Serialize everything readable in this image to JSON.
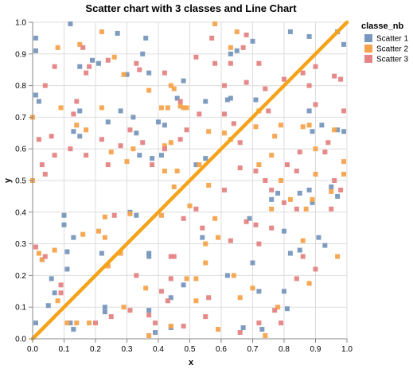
{
  "chart_data": {
    "type": "scatter",
    "title": "Scatter chart with 3 classes and Line Chart",
    "xlabel": "x",
    "ylabel": "y",
    "xlim": [
      0,
      1
    ],
    "ylim": [
      0,
      1
    ],
    "xticks": [
      "0.0",
      "0.1",
      "0.2",
      "0.3",
      "0.4",
      "0.5",
      "0.6",
      "0.7",
      "0.8",
      "0.9",
      "1.0"
    ],
    "yticks": [
      "0.0",
      "0.1",
      "0.2",
      "0.3",
      "0.4",
      "0.5",
      "0.6",
      "0.7",
      "0.8",
      "0.9",
      "1.0"
    ],
    "grid": true,
    "legend": {
      "title": "classe_nb",
      "placement": "top-right",
      "entries": [
        "Scatter 1",
        "Scatter 2",
        "Scatter 3"
      ]
    },
    "line": {
      "color": "#f5a31a",
      "x": [
        0,
        1
      ],
      "y": [
        0,
        1
      ]
    },
    "series": [
      {
        "name": "Scatter 1",
        "color": "#7797bc",
        "points": [
          [
            0.12,
            0.995
          ],
          [
            0.27,
            0.965
          ],
          [
            0.36,
            0.95
          ],
          [
            0.35,
            0.9
          ],
          [
            0.37,
            0.84
          ],
          [
            0.19,
            0.88
          ],
          [
            0.21,
            0.87
          ],
          [
            0.15,
            0.86
          ],
          [
            0.3,
            0.835
          ],
          [
            0.48,
            0.815
          ],
          [
            0.01,
            0.95
          ],
          [
            0.01,
            0.91
          ],
          [
            0.01,
            0.77
          ],
          [
            0.02,
            0.75
          ],
          [
            0.15,
            0.72
          ],
          [
            0.13,
            0.655
          ],
          [
            0.15,
            0.64
          ],
          [
            0.24,
            0.685
          ],
          [
            0.28,
            0.72
          ],
          [
            0.32,
            0.7
          ],
          [
            0.4,
            0.685
          ],
          [
            0.46,
            0.76
          ],
          [
            0.55,
            0.75
          ],
          [
            0.62,
            0.755
          ],
          [
            0.63,
            0.76
          ],
          [
            0.71,
            0.755
          ],
          [
            0.63,
            0.9
          ],
          [
            0.65,
            0.91
          ],
          [
            0.7,
            0.94
          ],
          [
            0.82,
            0.97
          ],
          [
            0.88,
            0.955
          ],
          [
            0.99,
            0.93
          ],
          [
            0.88,
            0.72
          ],
          [
            0.89,
            0.655
          ],
          [
            0.92,
            0.675
          ],
          [
            0.97,
            0.66
          ],
          [
            0.99,
            0.655
          ],
          [
            0.42,
            0.675
          ],
          [
            0.55,
            0.57
          ],
          [
            0.52,
            0.55
          ],
          [
            0.33,
            0.65
          ],
          [
            0.38,
            0.57
          ],
          [
            0.31,
            0.4
          ],
          [
            0.33,
            0.39
          ],
          [
            0.1,
            0.36
          ],
          [
            0.1,
            0.39
          ],
          [
            0.13,
            0.32
          ],
          [
            0.03,
            0.25
          ],
          [
            0.06,
            0.19
          ],
          [
            0.11,
            0.22
          ],
          [
            0.07,
            0.145
          ],
          [
            0.22,
            0.27
          ],
          [
            0.11,
            0.275
          ],
          [
            0.12,
            0.05
          ],
          [
            0.13,
            0.03
          ],
          [
            0.23,
            0.085
          ],
          [
            0.23,
            0.1
          ],
          [
            0.01,
            0.05
          ],
          [
            0.05,
            0.105
          ],
          [
            0.34,
            0.58
          ],
          [
            0.41,
            0.58
          ],
          [
            0.37,
            0.27
          ],
          [
            0.37,
            0.26
          ],
          [
            0.48,
            0.17
          ],
          [
            0.44,
            0.13
          ],
          [
            0.54,
            0.32
          ],
          [
            0.62,
            0.2
          ],
          [
            0.69,
            0.38
          ],
          [
            0.72,
            0.15
          ],
          [
            0.8,
            0.15
          ],
          [
            0.76,
            0.44
          ],
          [
            0.78,
            0.46
          ],
          [
            0.8,
            0.34
          ],
          [
            0.85,
            0.46
          ],
          [
            0.88,
            0.47
          ],
          [
            0.89,
            0.43
          ],
          [
            0.95,
            0.48
          ],
          [
            0.97,
            0.45
          ],
          [
            0.91,
            0.32
          ],
          [
            0.93,
            0.295
          ],
          [
            0.85,
            0.28
          ],
          [
            0.82,
            0.27
          ],
          [
            0.7,
            0.24
          ],
          [
            0.67,
            0.035
          ],
          [
            0.73,
            0.03
          ],
          [
            0.81,
            0.095
          ],
          [
            0.39,
            0.02
          ],
          [
            0.44,
            0.035
          ],
          [
            0.97,
            0.97
          ],
          [
            0.37,
            0.09
          ]
        ]
      },
      {
        "name": "Scatter 2",
        "color": "#f5a34c",
        "points": [
          [
            0.22,
            0.97
          ],
          [
            0.26,
            0.89
          ],
          [
            0.29,
            0.835
          ],
          [
            0.08,
            0.92
          ],
          [
            0.15,
            0.93
          ],
          [
            0.37,
            0.785
          ],
          [
            0.44,
            0.8
          ],
          [
            0.45,
            0.79
          ],
          [
            0.47,
            0.735
          ],
          [
            0.43,
            0.73
          ],
          [
            0.49,
            0.73
          ],
          [
            0.58,
            0.995
          ],
          [
            0.65,
            0.97
          ],
          [
            0.56,
            0.655
          ],
          [
            0.61,
            0.65
          ],
          [
            0.63,
            0.63
          ],
          [
            0.41,
            0.73
          ],
          [
            0.22,
            0.73
          ],
          [
            0.09,
            0.73
          ],
          [
            0.14,
            0.675
          ],
          [
            0.17,
            0.66
          ],
          [
            0.0,
            0.7
          ],
          [
            0.32,
            0.6
          ],
          [
            0.3,
            0.56
          ],
          [
            0.42,
            0.61
          ],
          [
            0.44,
            0.62
          ],
          [
            0.53,
            0.55
          ],
          [
            0.56,
            0.485
          ],
          [
            0.71,
            0.67
          ],
          [
            0.72,
            0.72
          ],
          [
            0.79,
            0.675
          ],
          [
            0.86,
            0.67
          ],
          [
            0.88,
            0.675
          ],
          [
            0.9,
            0.6
          ],
          [
            0.96,
            0.66
          ],
          [
            0.99,
            0.56
          ],
          [
            0.87,
            0.41
          ],
          [
            0.89,
            0.44
          ],
          [
            0.95,
            0.465
          ],
          [
            0.99,
            0.52
          ],
          [
            0.72,
            0.55
          ],
          [
            0.76,
            0.58
          ],
          [
            0.79,
            0.5
          ],
          [
            0.76,
            0.41
          ],
          [
            0.82,
            0.44
          ],
          [
            0.9,
            0.52
          ],
          [
            0.46,
            0.53
          ],
          [
            0.42,
            0.53
          ],
          [
            0.16,
            0.33
          ],
          [
            0.21,
            0.34
          ],
          [
            0.23,
            0.385
          ],
          [
            0.23,
            0.32
          ],
          [
            0.28,
            0.27
          ],
          [
            0.24,
            0.23
          ],
          [
            0.31,
            0.395
          ],
          [
            0.41,
            0.39
          ],
          [
            0.55,
            0.3
          ],
          [
            0.58,
            0.38
          ],
          [
            0.59,
            0.32
          ],
          [
            0.55,
            0.24
          ],
          [
            0.52,
            0.19
          ],
          [
            0.64,
            0.2
          ],
          [
            0.66,
            0.13
          ],
          [
            0.7,
            0.16
          ],
          [
            0.86,
            0.31
          ],
          [
            0.88,
            0.175
          ],
          [
            0.97,
            0.26
          ],
          [
            0.0,
            0.5
          ],
          [
            0.02,
            0.27
          ],
          [
            0.03,
            0.25
          ],
          [
            0.07,
            0.28
          ],
          [
            0.08,
            0.12
          ],
          [
            0.11,
            0.05
          ],
          [
            0.14,
            0.05
          ],
          [
            0.18,
            0.05
          ],
          [
            0.29,
            0.1
          ],
          [
            0.36,
            0.16
          ],
          [
            0.37,
            0.01
          ],
          [
            0.44,
            0.04
          ],
          [
            0.49,
            0.19
          ],
          [
            0.52,
            0.12
          ],
          [
            0.59,
            0.03
          ],
          [
            0.74,
            0.01
          ],
          [
            0.78,
            0.1
          ],
          [
            0.45,
            0.48
          ],
          [
            0.5,
            0.42
          ],
          [
            0.25,
            0.59
          ],
          [
            0.48,
            0.73
          ],
          [
            0.63,
            0.92
          ],
          [
            0.77,
            0.64
          ]
        ]
      },
      {
        "name": "Scatter 3",
        "color": "#e58383",
        "points": [
          [
            0.18,
            0.86
          ],
          [
            0.17,
            0.84
          ],
          [
            0.24,
            0.88
          ],
          [
            0.16,
            0.92
          ],
          [
            0.33,
            0.87
          ],
          [
            0.34,
            0.85
          ],
          [
            0.42,
            0.84
          ],
          [
            0.47,
            0.75
          ],
          [
            0.52,
            0.89
          ],
          [
            0.58,
            0.87
          ],
          [
            0.57,
            0.95
          ],
          [
            0.61,
            0.8
          ],
          [
            0.68,
            0.81
          ],
          [
            0.72,
            0.87
          ],
          [
            0.74,
            0.79
          ],
          [
            0.8,
            0.82
          ],
          [
            0.86,
            0.84
          ],
          [
            0.9,
            0.86
          ],
          [
            0.96,
            0.83
          ],
          [
            0.98,
            0.82
          ],
          [
            0.88,
            0.8
          ],
          [
            0.9,
            0.74
          ],
          [
            0.99,
            0.72
          ],
          [
            0.75,
            0.72
          ],
          [
            0.63,
            0.87
          ],
          [
            0.67,
            0.92
          ],
          [
            0.68,
            0.96
          ],
          [
            0.07,
            0.86
          ],
          [
            0.04,
            0.8
          ],
          [
            0.02,
            0.63
          ],
          [
            0.06,
            0.64
          ],
          [
            0.07,
            0.58
          ],
          [
            0.13,
            0.71
          ],
          [
            0.14,
            0.75
          ],
          [
            0.12,
            0.6
          ],
          [
            0.22,
            0.63
          ],
          [
            0.24,
            0.55
          ],
          [
            0.31,
            0.66
          ],
          [
            0.35,
            0.62
          ],
          [
            0.42,
            0.6
          ],
          [
            0.47,
            0.63
          ],
          [
            0.49,
            0.66
          ],
          [
            0.53,
            0.71
          ],
          [
            0.61,
            0.71
          ],
          [
            0.64,
            0.68
          ],
          [
            0.66,
            0.62
          ],
          [
            0.66,
            0.54
          ],
          [
            0.71,
            0.53
          ],
          [
            0.74,
            0.5
          ],
          [
            0.76,
            0.47
          ],
          [
            0.84,
            0.53
          ],
          [
            0.85,
            0.59
          ],
          [
            0.93,
            0.59
          ],
          [
            0.94,
            0.62
          ],
          [
            0.95,
            0.41
          ],
          [
            0.98,
            0.47
          ],
          [
            0.96,
            0.5
          ],
          [
            0.84,
            0.41
          ],
          [
            0.8,
            0.43
          ],
          [
            0.81,
            0.55
          ],
          [
            0.17,
            0.58
          ],
          [
            0.03,
            0.55
          ],
          [
            0.04,
            0.52
          ],
          [
            0.28,
            0.61
          ],
          [
            0.38,
            0.55
          ],
          [
            0.48,
            0.38
          ],
          [
            0.52,
            0.41
          ],
          [
            0.61,
            0.47
          ],
          [
            0.54,
            0.35
          ],
          [
            0.63,
            0.31
          ],
          [
            0.68,
            0.37
          ],
          [
            0.71,
            0.36
          ],
          [
            0.76,
            0.35
          ],
          [
            0.72,
            0.3
          ],
          [
            0.86,
            0.26
          ],
          [
            0.84,
            0.19
          ],
          [
            0.77,
            0.09
          ],
          [
            0.72,
            0.05
          ],
          [
            0.56,
            0.13
          ],
          [
            0.45,
            0.26
          ],
          [
            0.44,
            0.19
          ],
          [
            0.41,
            0.15
          ],
          [
            0.43,
            0.12
          ],
          [
            0.37,
            0.075
          ],
          [
            0.39,
            0.05
          ],
          [
            0.44,
            0.26
          ],
          [
            0.01,
            0.29
          ],
          [
            0.04,
            0.26
          ],
          [
            0.09,
            0.17
          ],
          [
            0.09,
            0.145
          ],
          [
            0.2,
            0.05
          ],
          [
            0.25,
            0.07
          ],
          [
            0.31,
            0.09
          ],
          [
            0.48,
            0.04
          ],
          [
            0.66,
            0.02
          ],
          [
            0.79,
            0.05
          ],
          [
            0.55,
            0.07
          ],
          [
            0.9,
            0.22
          ],
          [
            0.33,
            0.2
          ],
          [
            0.26,
            0.39
          ]
        ]
      }
    ]
  }
}
